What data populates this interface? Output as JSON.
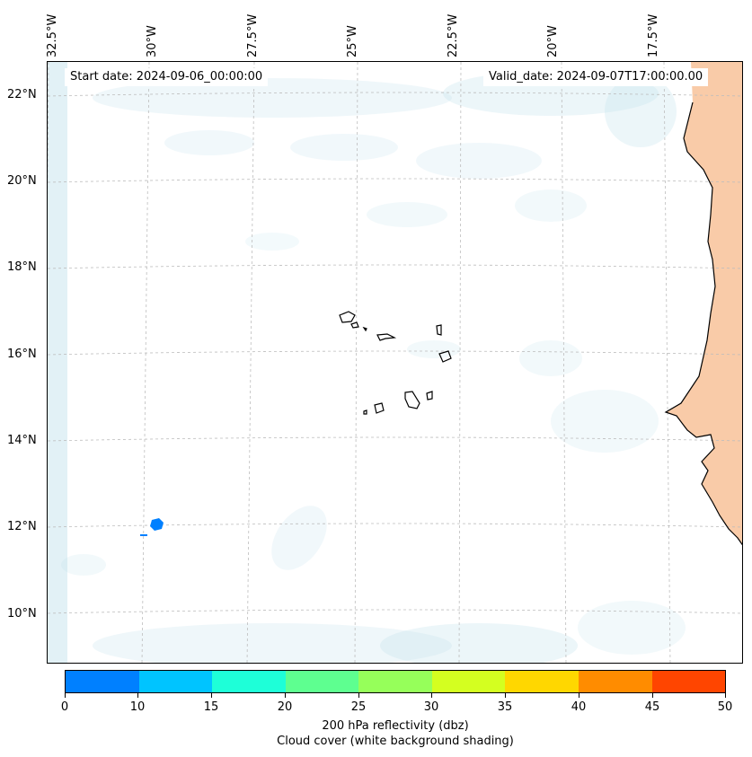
{
  "map": {
    "start_date": "Start date: 2024-09-06_00:00:00",
    "valid_date": "Valid_date: 2024-09-07T17:00:00.00",
    "lon_labels": [
      "32.5°W",
      "30°W",
      "27.5°W",
      "25°W",
      "22.5°W",
      "20°W",
      "17.5°W"
    ],
    "lat_labels": [
      "22°N",
      "20°N",
      "18°N",
      "16°N",
      "14°N",
      "12°N",
      "10°N"
    ],
    "land_color": "#f9cba8",
    "cloud_color": "#bfe1ec",
    "grid_color": "#bdbdbd",
    "coastline_color": "#000000",
    "reflectivity_cell_color": "#0080ff"
  },
  "colorbar": {
    "ticks": [
      "0",
      "10",
      "15",
      "20",
      "25",
      "30",
      "35",
      "40",
      "45",
      "50"
    ],
    "colors": [
      "#0080ff",
      "#00c4ff",
      "#1effd8",
      "#5eff90",
      "#96ff5a",
      "#d4ff20",
      "#ffd700",
      "#ff8c00",
      "#ff4500"
    ],
    "label": "200 hPa reflectivity (dbz)",
    "sublabel": "Cloud cover (white background shading)"
  }
}
